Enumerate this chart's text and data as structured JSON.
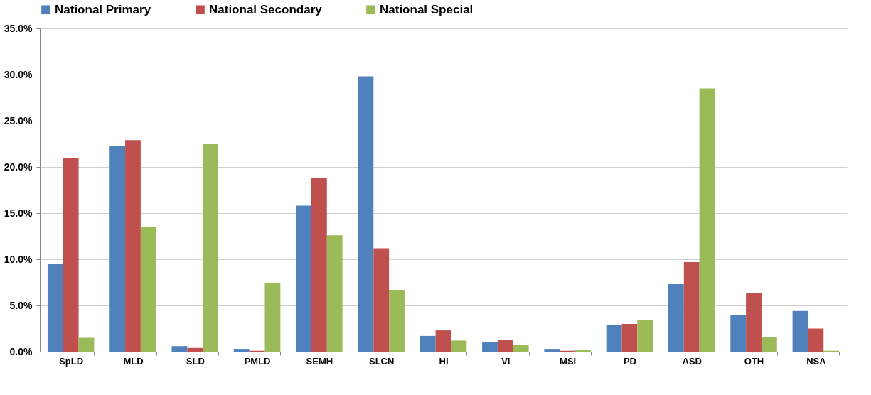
{
  "chart_data": {
    "type": "bar",
    "categories": [
      "SpLD",
      "MLD",
      "SLD",
      "PMLD",
      "SEMH",
      "SLCN",
      "HI",
      "VI",
      "MSI",
      "PD",
      "ASD",
      "OTH",
      "NSA"
    ],
    "series": [
      {
        "name": "National Primary",
        "color": "#4f81bd",
        "values": [
          9.5,
          22.3,
          0.6,
          0.3,
          15.8,
          29.8,
          1.7,
          1.0,
          0.3,
          2.9,
          7.3,
          4.0,
          4.4
        ]
      },
      {
        "name": "National Secondary",
        "color": "#c0504d",
        "values": [
          21.0,
          22.9,
          0.4,
          0.1,
          18.8,
          11.2,
          2.3,
          1.3,
          0.1,
          3.0,
          9.7,
          6.3,
          2.5
        ]
      },
      {
        "name": "National Special",
        "color": "#9bbb59",
        "values": [
          1.5,
          13.5,
          22.5,
          7.4,
          12.6,
          6.7,
          1.2,
          0.7,
          0.2,
          3.4,
          28.5,
          1.6,
          0.1
        ]
      }
    ],
    "ylim": [
      0,
      35
    ],
    "yticks": [
      {
        "value": 0,
        "label": "0.0%"
      },
      {
        "value": 5,
        "label": "5.0%"
      },
      {
        "value": 10,
        "label": "10.0%"
      },
      {
        "value": 15,
        "label": "15.0%"
      },
      {
        "value": 20,
        "label": "20.0%"
      },
      {
        "value": 25,
        "label": "25.0%"
      },
      {
        "value": 30,
        "label": "30.0%"
      },
      {
        "value": 35,
        "label": "35.0%"
      }
    ],
    "grid": "y",
    "legend": "top"
  }
}
